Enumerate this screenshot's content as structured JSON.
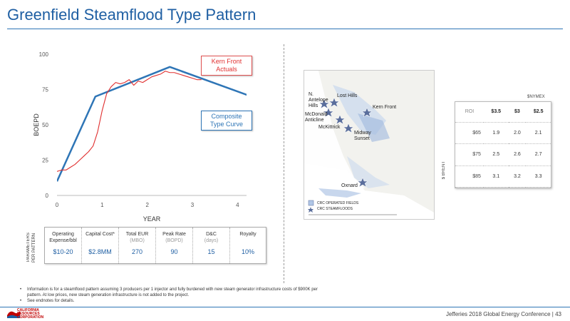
{
  "slide": {
    "title": "Greenfield Steamflood Type Pattern",
    "footer": "Jefferies 2018 Global Energy Conference  |  43",
    "logo_lines": [
      "CALIFORNIA",
      "RESOURCES",
      "CORPORATION"
    ]
  },
  "colors": {
    "accent": "#1f5fa3",
    "actuals": "#e03030",
    "type_curve": "#2e75b6"
  },
  "chart_data": {
    "type": "line",
    "xlabel": "YEAR",
    "ylabel": "BOEPD",
    "xlim": [
      0,
      4.2
    ],
    "ylim": [
      0,
      100
    ],
    "xticks": [
      0,
      1,
      2,
      3,
      4
    ],
    "yticks": [
      0,
      25,
      50,
      75,
      100
    ],
    "series": [
      {
        "name": "Composite Type Curve",
        "color": "#2e75b6",
        "x": [
          0,
          0.85,
          2.5,
          4.4
        ],
        "y": [
          10,
          70,
          91,
          69
        ]
      },
      {
        "name": "Kern Front Actuals",
        "color": "#e03030",
        "x": [
          0,
          0.1,
          0.2,
          0.3,
          0.4,
          0.5,
          0.6,
          0.7,
          0.8,
          0.9,
          1.0,
          1.1,
          1.2,
          1.3,
          1.4,
          1.5,
          1.6,
          1.7,
          1.8,
          1.9,
          2.0,
          2.1,
          2.2,
          2.3,
          2.4,
          2.5,
          2.6,
          2.7,
          2.8,
          2.9,
          3.0,
          3.1,
          3.2
        ],
        "y": [
          17,
          18,
          18,
          20,
          22,
          25,
          28,
          31,
          35,
          45,
          60,
          72,
          77,
          80,
          79,
          80,
          82,
          78,
          81,
          80,
          82,
          84,
          85,
          86,
          88,
          87,
          87,
          86,
          85,
          84,
          83,
          82,
          82
        ]
      }
    ],
    "annotations": [
      {
        "text": "Kern Front Actuals",
        "color": "#e03030"
      },
      {
        "text": "Composite Type Curve",
        "color": "#2e75b6"
      }
    ]
  },
  "params": {
    "side_label": "PARAMETERS PER PATTERN",
    "items": [
      {
        "label": "Operating Expense/bbl",
        "sub": "",
        "value": "$10-20"
      },
      {
        "label": "Capital Cost*",
        "sub": "",
        "value": "$2.8MM"
      },
      {
        "label": "Total EUR",
        "sub": "(MBO)",
        "value": "270"
      },
      {
        "label": "Peak Rate",
        "sub": "(BOPD)",
        "value": "90"
      },
      {
        "label": "D&C",
        "sub": "(days)",
        "value": "15"
      },
      {
        "label": "Royalty",
        "sub": "",
        "value": "10%"
      }
    ]
  },
  "map": {
    "labels": [
      "N. Antelope Hills",
      "Lost Hills",
      "Kern Front",
      "McDonald Anticline",
      "McKittrick",
      "Midway Sunset",
      "Oxnard"
    ],
    "legend": [
      "CRC OPERATED FIELDS",
      "CRC STEAMFLOODS"
    ]
  },
  "sensitivity": {
    "caption": "$NYMEX",
    "corner": "ROI",
    "side_label": "$ BRENT",
    "cols": [
      "$3.5",
      "$3",
      "$2.5"
    ],
    "rows": [
      {
        "label": "$65",
        "values": [
          "1.9",
          "2.0",
          "2.1"
        ]
      },
      {
        "label": "$75",
        "values": [
          "2.5",
          "2.6",
          "2.7"
        ]
      },
      {
        "label": "$85",
        "values": [
          "3.1",
          "3.2",
          "3.3"
        ]
      }
    ]
  },
  "notes": [
    "Information is for a steamflood pattern assuming 3 producers per 1 injector and fully burdened with new steam generator infrastructure costs of $900K per pattern. At low prices, new steam generation infrastructure is not added to the project.",
    "See endnotes for details."
  ]
}
